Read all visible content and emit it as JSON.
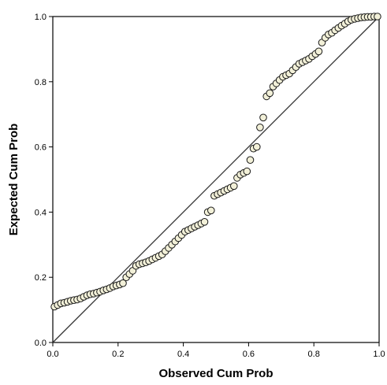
{
  "chart_data": {
    "type": "scatter",
    "title": "",
    "xlabel": "Observed Cum Prob",
    "ylabel": "Expected Cum Prob",
    "xlim": [
      0.0,
      1.0
    ],
    "ylim": [
      0.0,
      1.0
    ],
    "x_ticks": [
      "0.0",
      "0.2",
      "0.4",
      "0.6",
      "0.8",
      "1.0"
    ],
    "y_ticks": [
      "0.0",
      "0.2",
      "0.4",
      "0.6",
      "0.8",
      "1.0"
    ],
    "grid": false,
    "legend": "none",
    "reference_line": {
      "from": [
        0,
        0
      ],
      "to": [
        1,
        1
      ]
    },
    "marker_fill": "#f2f0d8",
    "marker_stroke": "#1a1a1a",
    "series": [
      {
        "x": [
          0.005,
          0.015,
          0.025,
          0.035,
          0.045,
          0.055,
          0.065,
          0.075,
          0.085,
          0.095,
          0.105,
          0.115,
          0.125,
          0.135,
          0.145,
          0.155,
          0.165,
          0.175,
          0.185,
          0.195,
          0.205,
          0.215,
          0.225,
          0.235,
          0.245,
          0.255,
          0.265,
          0.275,
          0.285,
          0.295,
          0.305,
          0.315,
          0.325,
          0.335,
          0.345,
          0.355,
          0.365,
          0.375,
          0.385,
          0.395,
          0.405,
          0.415,
          0.425,
          0.435,
          0.445,
          0.455,
          0.465,
          0.475,
          0.485,
          0.495,
          0.505,
          0.515,
          0.525,
          0.535,
          0.545,
          0.555,
          0.565,
          0.575,
          0.585,
          0.595,
          0.605,
          0.615,
          0.625,
          0.635,
          0.645,
          0.655,
          0.665,
          0.675,
          0.685,
          0.695,
          0.705,
          0.715,
          0.725,
          0.735,
          0.745,
          0.755,
          0.765,
          0.775,
          0.785,
          0.795,
          0.805,
          0.815,
          0.825,
          0.835,
          0.845,
          0.855,
          0.865,
          0.875,
          0.885,
          0.895,
          0.905,
          0.915,
          0.925,
          0.935,
          0.945,
          0.955,
          0.965,
          0.975,
          0.985,
          0.995
        ],
        "y": [
          0.11,
          0.115,
          0.12,
          0.122,
          0.125,
          0.128,
          0.13,
          0.132,
          0.135,
          0.14,
          0.145,
          0.148,
          0.15,
          0.153,
          0.156,
          0.16,
          0.163,
          0.167,
          0.172,
          0.175,
          0.178,
          0.182,
          0.2,
          0.21,
          0.22,
          0.235,
          0.24,
          0.243,
          0.246,
          0.25,
          0.255,
          0.26,
          0.265,
          0.27,
          0.28,
          0.29,
          0.3,
          0.31,
          0.32,
          0.33,
          0.34,
          0.345,
          0.35,
          0.355,
          0.36,
          0.365,
          0.37,
          0.4,
          0.405,
          0.45,
          0.455,
          0.46,
          0.465,
          0.47,
          0.475,
          0.48,
          0.505,
          0.515,
          0.52,
          0.525,
          0.56,
          0.595,
          0.6,
          0.66,
          0.69,
          0.755,
          0.765,
          0.785,
          0.795,
          0.805,
          0.815,
          0.82,
          0.825,
          0.835,
          0.845,
          0.855,
          0.86,
          0.865,
          0.87,
          0.878,
          0.885,
          0.893,
          0.92,
          0.935,
          0.945,
          0.95,
          0.958,
          0.965,
          0.972,
          0.978,
          0.985,
          0.99,
          0.993,
          0.995,
          0.997,
          0.998,
          0.999,
          0.999,
          1.0,
          1.0
        ]
      }
    ]
  }
}
